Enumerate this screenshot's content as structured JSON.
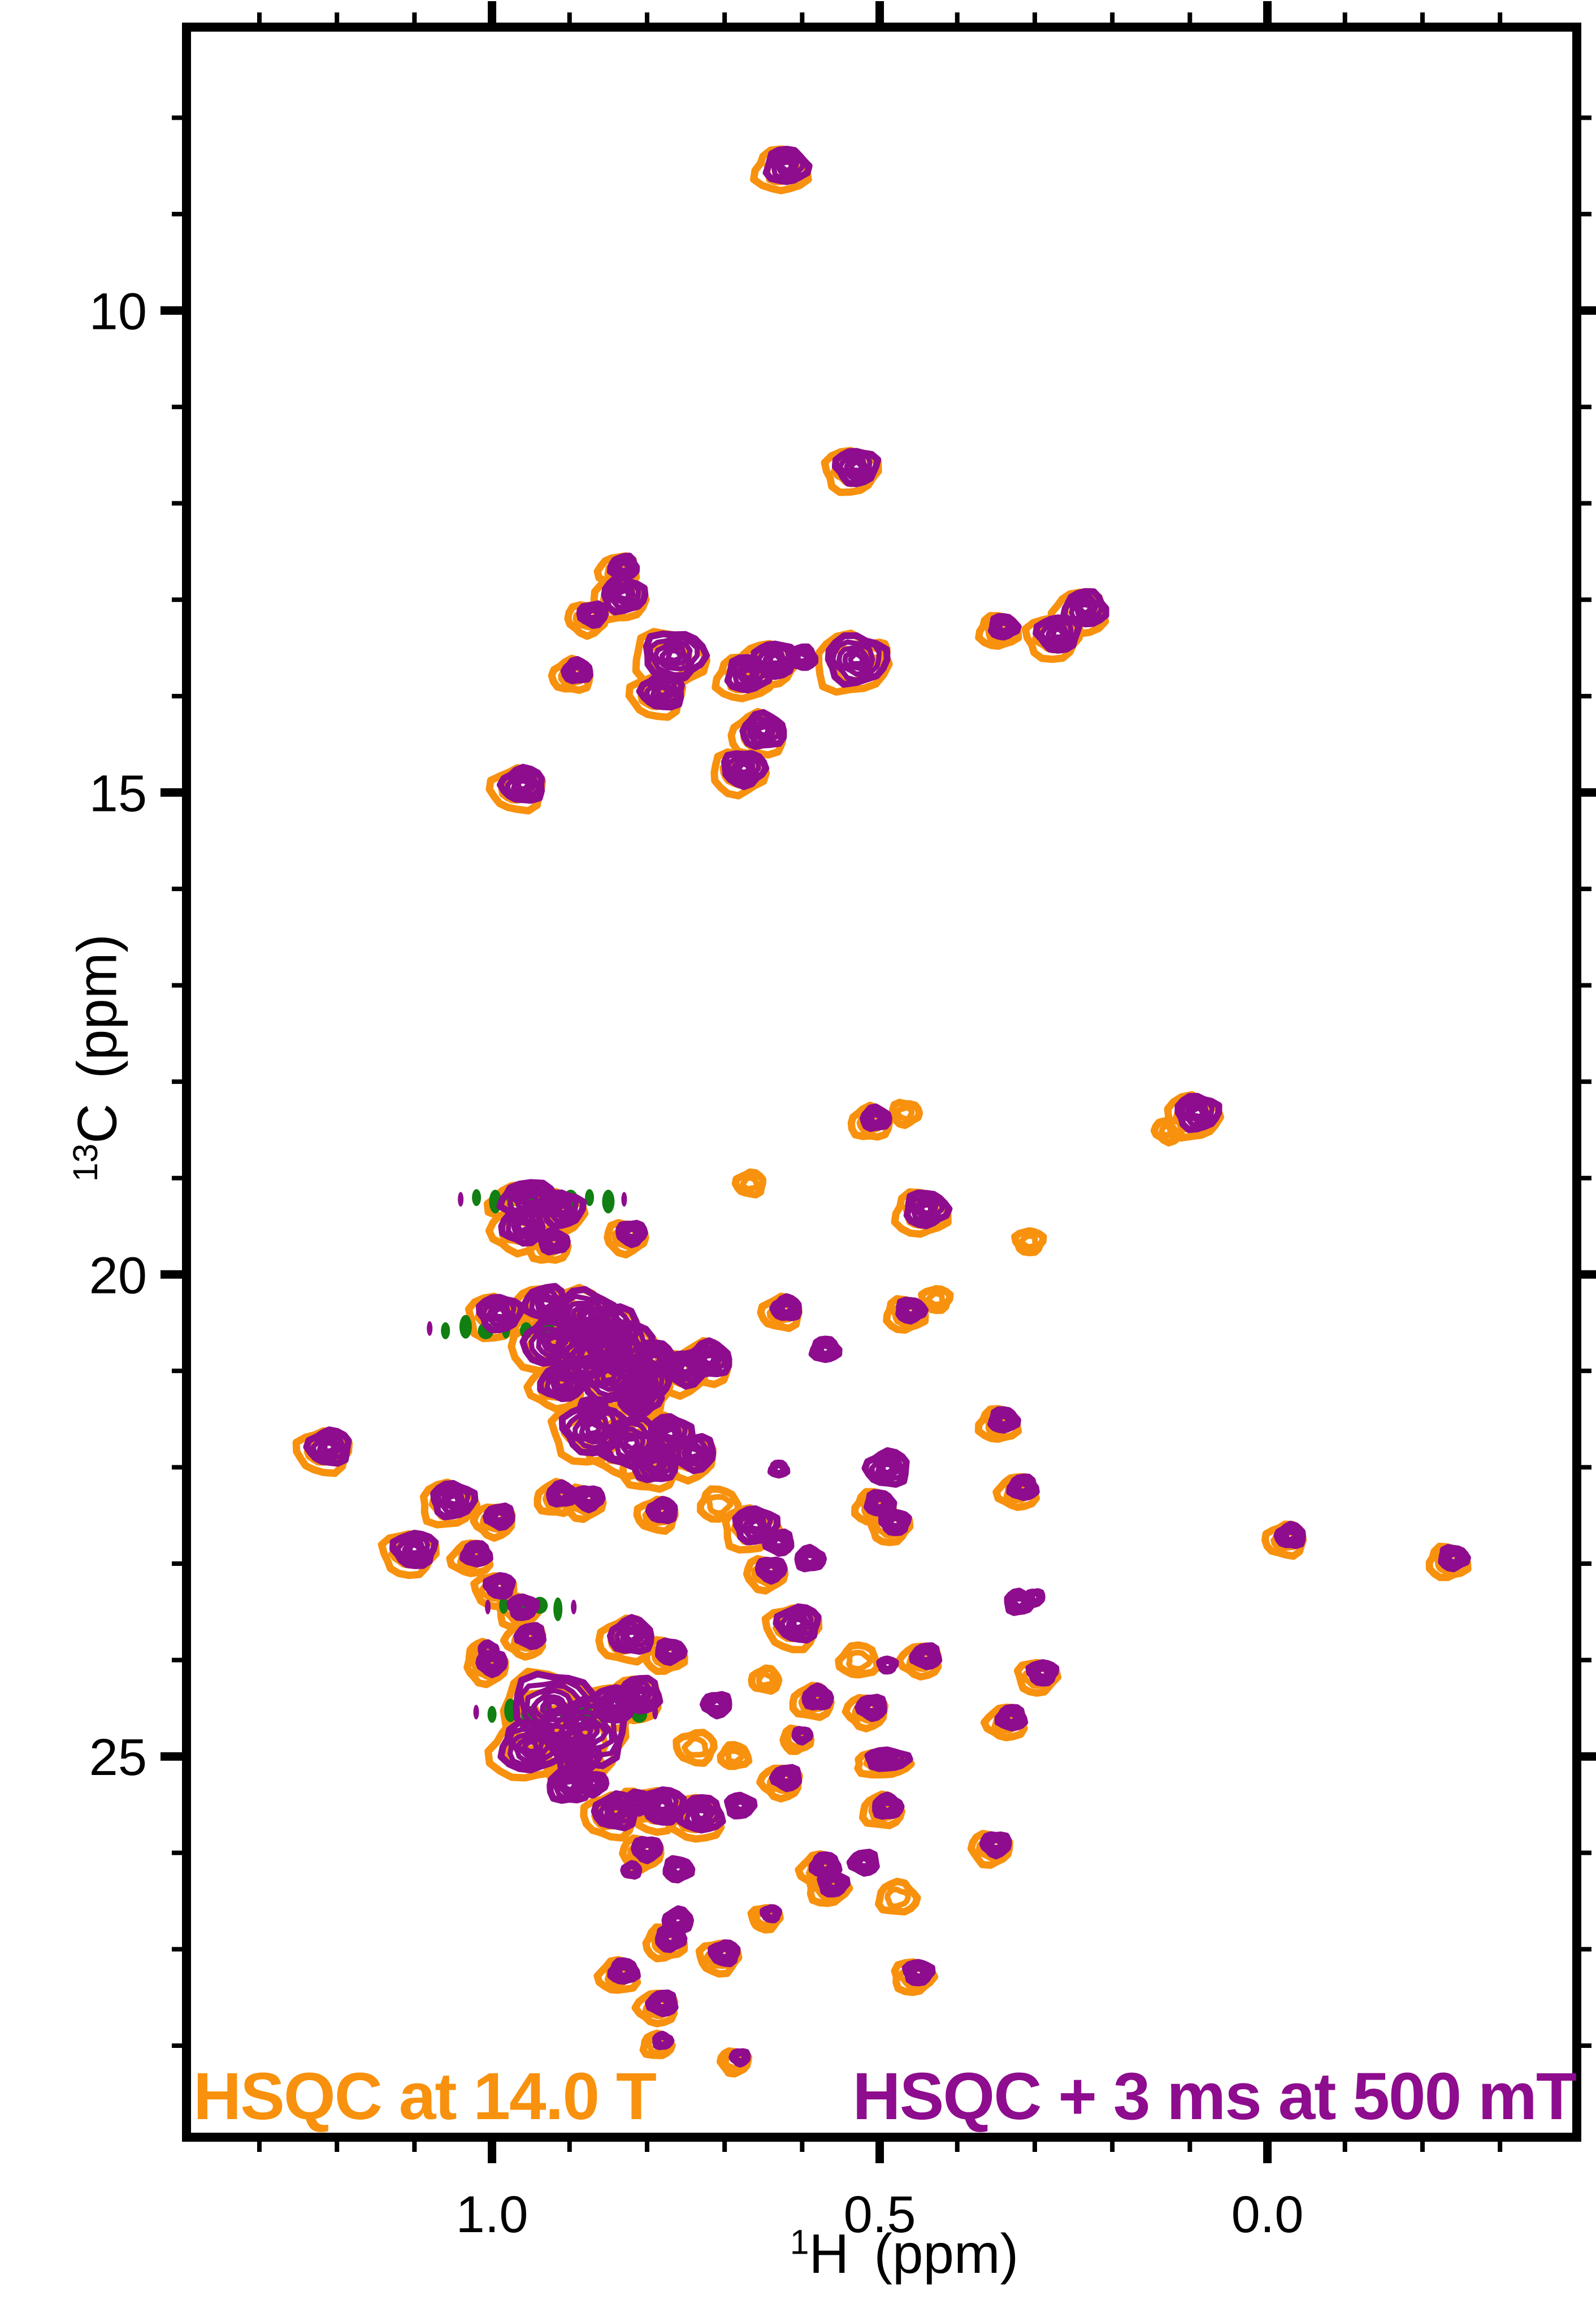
{
  "chart_data": {
    "type": "contour",
    "description": "Overlaid 1H-13C HSQC 2D NMR contour spectra; orange = HSQC at 14.0 T, purple = HSQC + 3 ms at 500 mT; small green dashes are negative-contour multiplet streaks.",
    "xlabel": {
      "isotope": "1",
      "nucleus": "H",
      "unit": "(ppm)"
    },
    "ylabel": {
      "isotope": "13",
      "nucleus": "C",
      "unit": "(ppm)"
    },
    "x_axis": {
      "range": [
        1.394,
        -0.399
      ],
      "major_ticks": [
        1.0,
        0.5,
        0.0
      ],
      "major_tick_labels": [
        "1.0",
        "0.5",
        "0.0"
      ],
      "minor_tick_step": 0.1,
      "reversed": true
    },
    "y_axis": {
      "range": [
        7.06,
        28.95
      ],
      "major_ticks": [
        10,
        15,
        20,
        25
      ],
      "major_tick_labels": [
        "10",
        "15",
        "20",
        "25"
      ],
      "minor_tick_step": 1,
      "increases_downward": true
    },
    "legend": [
      {
        "label": "HSQC at 14.0 T",
        "color": "#F8910D"
      },
      {
        "label": "HSQC + 3 ms at 500 mT",
        "color": "#8E0C8E"
      }
    ],
    "colors": {
      "orange": "#F8910D",
      "purple": "#8E0C8E",
      "green": "#117F11",
      "axis": "#000000",
      "background": "#ffffff"
    },
    "peaks": [
      [
        0.62,
        8.5,
        3,
        "b"
      ],
      [
        0.53,
        11.62,
        3,
        "b"
      ],
      [
        0.83,
        12.66,
        2,
        "b"
      ],
      [
        0.83,
        12.95,
        3,
        "b"
      ],
      [
        0.87,
        13.15,
        2,
        "b"
      ],
      [
        0.89,
        13.74,
        2,
        "b"
      ],
      [
        0.765,
        13.58,
        4,
        "b"
      ],
      [
        0.78,
        13.95,
        3,
        "b"
      ],
      [
        0.67,
        13.77,
        3,
        "b"
      ],
      [
        0.635,
        13.62,
        3,
        "b"
      ],
      [
        0.6,
        13.6,
        2,
        "p"
      ],
      [
        0.53,
        13.62,
        4,
        "b"
      ],
      [
        0.5,
        13.5,
        1,
        "o"
      ],
      [
        0.65,
        14.36,
        3,
        "b"
      ],
      [
        0.675,
        14.75,
        3,
        "b"
      ],
      [
        0.96,
        14.92,
        3,
        "b"
      ],
      [
        0.34,
        13.28,
        2,
        "b"
      ],
      [
        0.27,
        13.35,
        3,
        "b"
      ],
      [
        0.235,
        13.09,
        3,
        "b"
      ],
      [
        0.09,
        18.32,
        3,
        "b"
      ],
      [
        0.12,
        18.46,
        1,
        "o"
      ],
      [
        0.505,
        18.38,
        2,
        "b"
      ],
      [
        0.46,
        18.28,
        1,
        "o"
      ],
      [
        0.66,
        19.01,
        1,
        "o"
      ],
      [
        0.44,
        19.32,
        3,
        "b"
      ],
      [
        0.3,
        19.61,
        1,
        "o"
      ],
      [
        0.95,
        19.22,
        4,
        "b",
        0.55
      ],
      [
        0.91,
        19.32,
        3,
        "b"
      ],
      [
        0.96,
        19.5,
        3,
        "b"
      ],
      [
        0.92,
        19.66,
        2,
        "b"
      ],
      [
        0.82,
        19.57,
        2,
        "b"
      ],
      [
        0.62,
        20.35,
        2,
        "b"
      ],
      [
        0.46,
        20.37,
        2,
        "b"
      ],
      [
        0.42,
        20.21,
        1,
        "o"
      ],
      [
        0.57,
        20.78,
        2,
        "p"
      ],
      [
        0.99,
        20.4,
        3,
        "b"
      ],
      [
        0.93,
        20.3,
        3,
        "b"
      ],
      [
        0.88,
        20.42,
        4,
        "b"
      ],
      [
        0.85,
        20.57,
        4,
        "b"
      ],
      [
        0.92,
        20.7,
        4,
        "b"
      ],
      [
        0.88,
        20.82,
        4,
        "b"
      ],
      [
        0.83,
        20.75,
        4,
        "b"
      ],
      [
        0.79,
        20.88,
        3,
        "b"
      ],
      [
        0.85,
        21.05,
        4,
        "b"
      ],
      [
        0.91,
        21.12,
        3,
        "b"
      ],
      [
        0.8,
        21.12,
        3,
        "b"
      ],
      [
        0.75,
        20.97,
        3,
        "b"
      ],
      [
        0.72,
        20.88,
        3,
        "b"
      ],
      [
        0.81,
        21.28,
        3,
        "b"
      ],
      [
        1.21,
        21.79,
        3,
        "b"
      ],
      [
        0.34,
        21.51,
        2,
        "b"
      ],
      [
        0.87,
        21.6,
        4,
        "b"
      ],
      [
        0.82,
        21.75,
        4,
        "b"
      ],
      [
        0.77,
        21.65,
        3,
        "b"
      ],
      [
        0.74,
        21.85,
        3,
        "b"
      ],
      [
        0.79,
        21.97,
        3,
        "b"
      ],
      [
        0.87,
        21.4,
        2,
        "p"
      ],
      [
        0.49,
        22.01,
        3,
        "p"
      ],
      [
        0.5,
        22.37,
        2,
        "b"
      ],
      [
        0.48,
        22.57,
        2,
        "b"
      ],
      [
        0.315,
        22.21,
        2,
        "b"
      ],
      [
        1.05,
        22.34,
        3,
        "b"
      ],
      [
        0.99,
        22.51,
        2,
        "b"
      ],
      [
        0.91,
        22.28,
        2,
        "b"
      ],
      [
        0.875,
        22.32,
        2,
        "b"
      ],
      [
        0.78,
        22.45,
        2,
        "b"
      ],
      [
        0.7,
        22.34,
        2,
        "o"
      ],
      [
        1.1,
        22.85,
        3,
        "b"
      ],
      [
        1.02,
        22.9,
        2,
        "b"
      ],
      [
        0.66,
        22.6,
        3,
        "b"
      ],
      [
        0.63,
        22.78,
        2,
        "p"
      ],
      [
        0.59,
        22.95,
        2,
        "p"
      ],
      [
        0.64,
        23.06,
        2,
        "b"
      ],
      [
        -0.03,
        22.71,
        2,
        "b"
      ],
      [
        -0.24,
        22.94,
        2,
        "b"
      ],
      [
        0.99,
        23.23,
        2,
        "b"
      ],
      [
        0.63,
        22.02,
        1,
        "p"
      ],
      [
        0.96,
        23.45,
        2,
        "b"
      ],
      [
        0.95,
        23.75,
        2,
        "b"
      ],
      [
        1.005,
        23.89,
        1,
        "b"
      ],
      [
        1.0,
        24.03,
        2,
        "b"
      ],
      [
        0.82,
        23.75,
        3,
        "b"
      ],
      [
        0.77,
        23.91,
        2,
        "b"
      ],
      [
        0.605,
        23.62,
        3,
        "b"
      ],
      [
        0.52,
        23.96,
        2,
        "o"
      ],
      [
        0.49,
        24.05,
        1,
        "p"
      ],
      [
        0.44,
        23.96,
        2,
        "b"
      ],
      [
        0.32,
        23.4,
        2,
        "p"
      ],
      [
        0.3,
        23.35,
        1,
        "p"
      ],
      [
        0.64,
        24.16,
        1,
        "o"
      ],
      [
        0.92,
        24.48,
        5,
        "b"
      ],
      [
        0.88,
        24.75,
        5,
        "b"
      ],
      [
        0.95,
        24.9,
        4,
        "b"
      ],
      [
        0.84,
        24.45,
        3,
        "b"
      ],
      [
        0.81,
        24.36,
        3,
        "b"
      ],
      [
        0.89,
        25.0,
        3,
        "b"
      ],
      [
        0.71,
        24.46,
        2,
        "p"
      ],
      [
        0.58,
        24.39,
        2,
        "b"
      ],
      [
        0.6,
        24.78,
        1,
        "b"
      ],
      [
        0.73,
        24.86,
        2,
        "o"
      ],
      [
        0.68,
        24.95,
        1,
        "o"
      ],
      [
        0.29,
        24.13,
        2,
        "b"
      ],
      [
        0.33,
        24.6,
        2,
        "b"
      ],
      [
        0.49,
        25.03,
        3,
        "b",
        0.45
      ],
      [
        0.51,
        24.49,
        2,
        "b"
      ],
      [
        0.9,
        25.3,
        3,
        "p"
      ],
      [
        0.87,
        25.28,
        2,
        "p"
      ],
      [
        0.84,
        25.57,
        3,
        "b"
      ],
      [
        0.81,
        25.48,
        2,
        "b"
      ],
      [
        0.78,
        25.51,
        3,
        "b"
      ],
      [
        0.73,
        25.6,
        3,
        "b"
      ],
      [
        0.68,
        25.51,
        2,
        "p"
      ],
      [
        0.62,
        25.22,
        2,
        "b"
      ],
      [
        0.49,
        25.52,
        2,
        "b"
      ],
      [
        0.8,
        25.96,
        2,
        "b"
      ],
      [
        0.82,
        26.18,
        1,
        "p"
      ],
      [
        0.76,
        26.17,
        2,
        "p"
      ],
      [
        0.64,
        26.63,
        1,
        "b"
      ],
      [
        0.57,
        26.13,
        2,
        "b"
      ],
      [
        0.56,
        26.32,
        2,
        "b"
      ],
      [
        0.52,
        26.1,
        2,
        "p"
      ],
      [
        0.47,
        26.42,
        2,
        "o"
      ],
      [
        0.35,
        25.91,
        2,
        "b"
      ],
      [
        0.76,
        26.7,
        2,
        "p"
      ],
      [
        0.77,
        26.89,
        2,
        "b"
      ],
      [
        0.7,
        27.04,
        2,
        "b"
      ],
      [
        0.83,
        27.23,
        2,
        "b"
      ],
      [
        0.45,
        27.24,
        2,
        "b"
      ],
      [
        0.78,
        27.56,
        2,
        "b"
      ],
      [
        0.78,
        27.95,
        1,
        "b"
      ],
      [
        0.68,
        28.12,
        1,
        "b"
      ]
    ],
    "peak_encoding": "[1H ppm, 13C ppm, size 1-5, layers: b=orange+purple, o=orange only, p=purple only, optional ellipse aspect]",
    "negative_multiplets": [
      {
        "c": 19.22,
        "h_from": 1.02,
        "h_to": 0.85,
        "n": 8
      },
      {
        "c": 20.56,
        "h_from": 1.06,
        "h_to": 0.93,
        "n": 6
      },
      {
        "c": 23.45,
        "h_from": 0.985,
        "h_to": 0.915,
        "n": 4
      },
      {
        "c": 24.54,
        "h_from": 1.0,
        "h_to": 0.81,
        "n": 9
      }
    ]
  }
}
